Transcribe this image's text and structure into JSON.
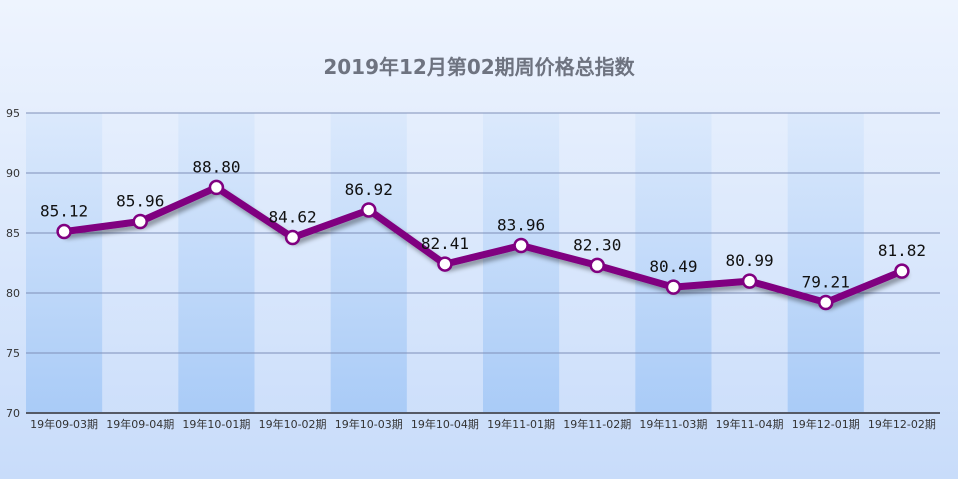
{
  "chart_data": {
    "type": "line",
    "title": "2019年12月第02期周价格总指数",
    "categories": [
      "19年09-03期",
      "19年09-04期",
      "19年10-01期",
      "19年10-02期",
      "19年10-03期",
      "19年10-04期",
      "19年11-01期",
      "19年11-02期",
      "19年11-03期",
      "19年11-04期",
      "19年12-01期",
      "19年12-02期"
    ],
    "series": [
      {
        "values": [
          85.12,
          85.96,
          88.8,
          84.62,
          86.92,
          82.41,
          83.96,
          82.3,
          80.49,
          80.99,
          79.21,
          81.82
        ]
      }
    ],
    "data_labels": [
      "85.12",
      "85.96",
      "88.80",
      "84.62",
      "86.92",
      "82.41",
      "83.96",
      "82.30",
      "80.49",
      "80.99",
      "79.21",
      "81.82"
    ],
    "ylim": [
      70,
      95
    ],
    "yticks": [
      70,
      75,
      80,
      85,
      90,
      95
    ],
    "ytick_labels": [
      "70",
      "75",
      "80",
      "85",
      "90",
      "95"
    ],
    "grid": true,
    "legend": "none",
    "colors": {
      "line": "#800080",
      "marker_fill": "#ffffff",
      "grid": "#7f8fb8",
      "band": "#b7d3f7",
      "background_top": "#e6f0fd",
      "background_bottom": "#c9ddfa"
    }
  }
}
